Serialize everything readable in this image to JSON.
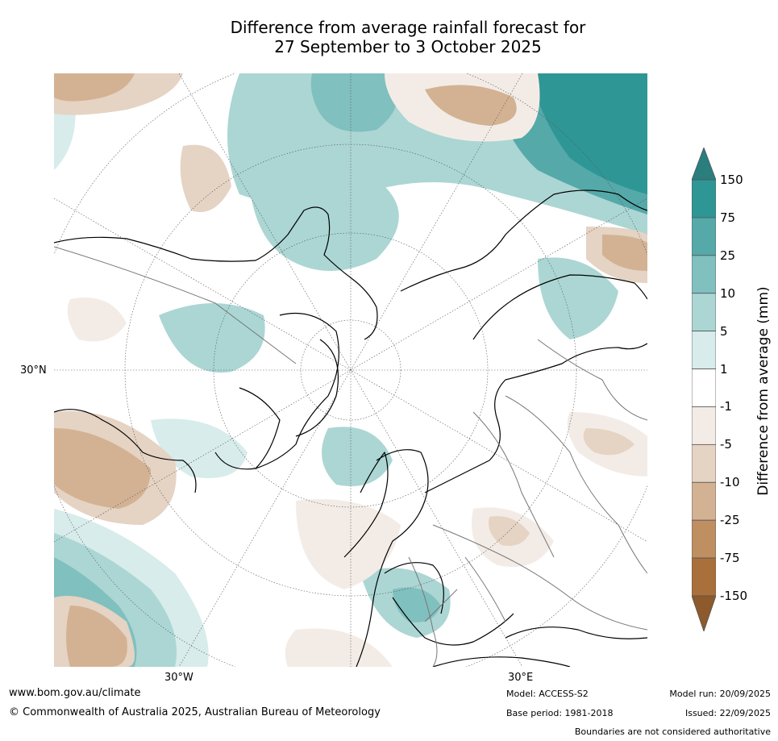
{
  "title": {
    "line1": "Difference from average rainfall forecast for",
    "line2": "27 September to 3 October 2025"
  },
  "map": {
    "lat_label": "30°N",
    "lon_labels": [
      "30°W",
      "30°E"
    ]
  },
  "colorbar": {
    "title": "Difference from average (mm)",
    "levels": [
      "150",
      "75",
      "25",
      "10",
      "5",
      "1",
      "-1",
      "-5",
      "-10",
      "-25",
      "-75",
      "-150"
    ],
    "colors": {
      "over": "#2a7e7e",
      "bins": [
        "#2f9696",
        "#55a9a9",
        "#80c0bf",
        "#abd6d4",
        "#d7eceb",
        "#ffffff",
        "#f3ece6",
        "#e5d3c4",
        "#d3b293",
        "#bf8f62",
        "#a9703b"
      ],
      "under": "#8c5a2b"
    }
  },
  "footer": {
    "url": "www.bom.gov.au/climate",
    "copyright": "© Commonwealth of Australia 2025, Australian Bureau of Meteorology",
    "model": "Model: ACCESS-S2",
    "base_period": "Base period: 1981-2018",
    "model_run": "Model run: 20/09/2025",
    "issued": "Issued: 22/09/2025",
    "disclaimer": "Boundaries are not considered authoritative"
  }
}
